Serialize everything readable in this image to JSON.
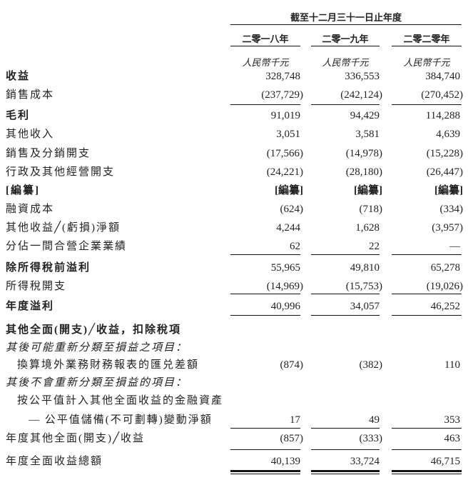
{
  "header": {
    "period": "截至十二月三十一日止年度",
    "years": [
      "二零一八年",
      "二零一九年",
      "二零二零年"
    ],
    "unit": "人民幣千元"
  },
  "rows": [
    {
      "label": "收益",
      "values": [
        "328,748",
        "336,553",
        "384,740"
      ]
    },
    {
      "label": "銷售成本",
      "values": [
        "(237,729)",
        "(242,124)",
        "(270,452)"
      ]
    },
    {
      "label": "毛利",
      "values": [
        "91,019",
        "94,429",
        "114,288"
      ]
    },
    {
      "label": "其他收入",
      "values": [
        "3,051",
        "3,581",
        "4,639"
      ]
    },
    {
      "label": "銷售及分銷開支",
      "values": [
        "(17,566)",
        "(14,978)",
        "(15,228)"
      ]
    },
    {
      "label": "行政及其他經營開支",
      "values": [
        "(24,221)",
        "(28,180)",
        "(26,447)"
      ]
    },
    {
      "label": "[編纂]",
      "values": [
        "[編纂]",
        "[編纂]",
        "[編纂]"
      ]
    },
    {
      "label": "融資成本",
      "values": [
        "(624)",
        "(718)",
        "(334)"
      ]
    },
    {
      "label": "其他收益╱(虧損)淨額",
      "values": [
        "4,244",
        "1,628",
        "(3,957)"
      ]
    },
    {
      "label": "分佔一間合營企業業績",
      "values": [
        "62",
        "22",
        "—"
      ]
    },
    {
      "label": "除所得稅前溢利",
      "values": [
        "55,965",
        "49,810",
        "65,278"
      ]
    },
    {
      "label": "所得稅開支",
      "values": [
        "(14,969)",
        "(15,753)",
        "(19,026)"
      ]
    },
    {
      "label": "年度溢利",
      "values": [
        "40,996",
        "34,057",
        "46,252"
      ]
    },
    {
      "label": "其他全面(開支)╱收益，扣除稅項",
      "values": []
    },
    {
      "label": "其後可能重新分類至損益之項目：",
      "values": []
    },
    {
      "label": "換算境外業務財務報表的匯兑差額",
      "values": [
        "(874)",
        "(382)",
        "110"
      ]
    },
    {
      "label": "其後不會重新分類至損益的項目：",
      "values": []
    },
    {
      "label": "按公平值計入其他全面收益的金融資產",
      "values": []
    },
    {
      "label": "— 公平值儲備(不可劃轉)變動淨額",
      "values": [
        "17",
        "49",
        "353"
      ]
    },
    {
      "label": "年度其他全面(開支)╱收益",
      "values": [
        "(857)",
        "(333)",
        "463"
      ]
    },
    {
      "label": "年度全面收益總額",
      "values": [
        "40,139",
        "33,724",
        "46,715"
      ]
    }
  ]
}
